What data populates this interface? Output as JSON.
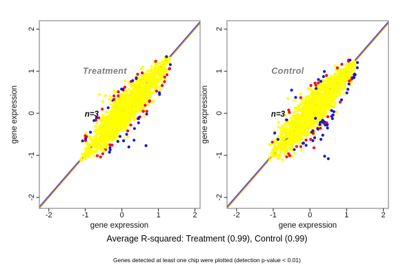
{
  "figure": {
    "background": "#ffffff",
    "caption_rsquared": "Average R-squared: Treatment (0.99), Control (0.99)",
    "caption_note": "Genes detected at least one chip were plotted (detection p-value < 0.01)"
  },
  "chart_data": {
    "type": "scatter",
    "description": "Pairwise gene-expression reproducibility scatter, one dense point cloud per condition plotted against the y=x identity line",
    "colors": {
      "point_main": "#ffff00",
      "point_red": "#ff0000",
      "point_blue": "#1a1acd",
      "identity_line": "#e8941e",
      "identity_line_under": "#5050c8",
      "frame": "#8a8a8a",
      "tick": "#222222",
      "title_gray": "#7d7d7d",
      "text": "#000000"
    },
    "panels": [
      {
        "title": "Treatment",
        "annotation": "n=3",
        "xlabel": "gene expression",
        "ylabel": "gene expression",
        "xticks": [
          -2,
          -1,
          0,
          1,
          2
        ],
        "yticks": [
          -2,
          -1,
          0,
          1,
          2
        ],
        "xlim": [
          -2.26,
          2.14
        ],
        "ylim": [
          -2.26,
          2.2
        ],
        "identity_line": "y = x",
        "r_squared": 0.99,
        "cloud": {
          "t_min": -1.15,
          "t_max": 1.35,
          "n_main": 1500,
          "n_halo": 30,
          "n_red": 38,
          "n_blue": 26,
          "max_half_width": 0.34,
          "seed": 101,
          "blue_below_fraction": 0.5
        },
        "outliers": [
          {
            "x": 0.19,
            "y": -0.8,
            "color": "blue"
          },
          {
            "x": 0.66,
            "y": -0.77,
            "color": "blue"
          },
          {
            "x": -0.05,
            "y": -0.55,
            "color": "blue"
          },
          {
            "x": 0.33,
            "y": -0.64,
            "color": "blue"
          },
          {
            "x": -0.49,
            "y": -0.9,
            "color": "yellow"
          },
          {
            "x": -0.62,
            "y": 0.45,
            "color": "yellow"
          },
          {
            "x": -0.45,
            "y": 0.42,
            "color": "yellow"
          },
          {
            "x": -0.52,
            "y": 0.28,
            "color": "yellow"
          },
          {
            "x": -0.3,
            "y": 0.33,
            "color": "yellow"
          },
          {
            "x": -0.18,
            "y": 0.5,
            "color": "yellow"
          },
          {
            "x": 0.08,
            "y": 0.62,
            "color": "red"
          },
          {
            "x": 0.75,
            "y": 0.28,
            "color": "red"
          }
        ]
      },
      {
        "title": "Control",
        "annotation": "n=3",
        "xlabel": "gene expression",
        "ylabel": "gene expression",
        "xticks": [
          -2,
          -1,
          0,
          1,
          2
        ],
        "yticks": [
          -2,
          -1,
          0,
          1,
          2
        ],
        "xlim": [
          -2.26,
          2.14
        ],
        "ylim": [
          -2.26,
          2.2
        ],
        "identity_line": "y = x",
        "r_squared": 0.99,
        "cloud": {
          "t_min": -1.12,
          "t_max": 1.3,
          "n_main": 1500,
          "n_halo": 30,
          "n_red": 30,
          "n_blue": 38,
          "max_half_width": 0.34,
          "seed": 202,
          "blue_below_fraction": 0.7
        },
        "outliers": [
          {
            "x": 0.15,
            "y": -0.12,
            "color": "blue"
          },
          {
            "x": 0.28,
            "y": -0.22,
            "color": "blue"
          },
          {
            "x": 0.42,
            "y": -0.28,
            "color": "blue"
          },
          {
            "x": 0.22,
            "y": -0.38,
            "color": "blue"
          },
          {
            "x": 0.35,
            "y": -0.52,
            "color": "blue"
          },
          {
            "x": 0.48,
            "y": -0.35,
            "color": "blue"
          },
          {
            "x": 0.3,
            "y": -0.62,
            "color": "blue"
          },
          {
            "x": 0.05,
            "y": -0.45,
            "color": "blue"
          },
          {
            "x": -0.87,
            "y": -0.62,
            "color": "blue"
          },
          {
            "x": 0.5,
            "y": -1.08,
            "color": "blue"
          },
          {
            "x": 0.4,
            "y": -1.02,
            "color": "blue"
          },
          {
            "x": 0.17,
            "y": 0.59,
            "color": "blue"
          },
          {
            "x": -0.5,
            "y": 0.55,
            "color": "blue"
          },
          {
            "x": 0.11,
            "y": -0.82,
            "color": "red"
          },
          {
            "x": 0.02,
            "y": -0.62,
            "color": "red"
          },
          {
            "x": 0.09,
            "y": -0.48,
            "color": "red"
          },
          {
            "x": -0.44,
            "y": 0.31,
            "color": "yellow"
          },
          {
            "x": -0.6,
            "y": 0.35,
            "color": "yellow"
          },
          {
            "x": -0.72,
            "y": -0.45,
            "color": "yellow"
          }
        ]
      }
    ]
  }
}
